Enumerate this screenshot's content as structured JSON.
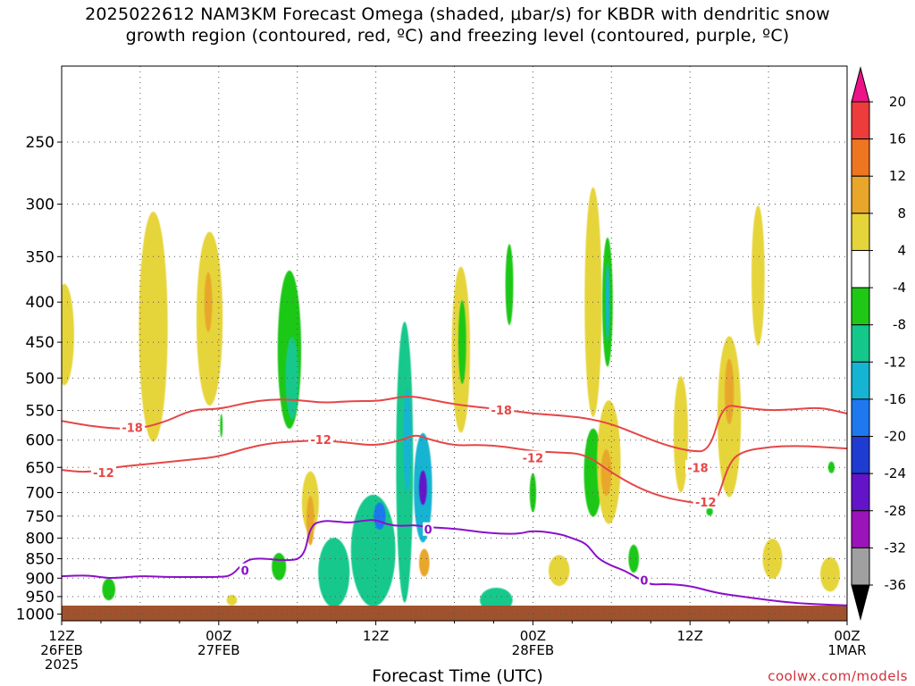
{
  "title": {
    "line1": "2025022612 NAM3KM Forecast Omega (shaded, μbar/s) for KBDR with dendritic snow",
    "line2": "growth region (contoured, red, ºC) and freezing level (contoured, purple, ºC)"
  },
  "xaxis_label": "Forecast Time (UTC)",
  "credit": "coolwx.com/models",
  "chart_data": {
    "type": "heatmap",
    "title": "2025022612 NAM3KM Forecast Omega (shaded, μbar/s) for KBDR with dendritic snow growth region (contoured, red, ºC) and freezing level (contoured, purple, ºC)",
    "xlabel": "Forecast Time (UTC)",
    "ylabel": "",
    "x_unit": "forecast hour",
    "xlim": [
      0,
      60
    ],
    "ylim": [
      1020,
      200
    ],
    "y_ticks": [
      250,
      300,
      350,
      400,
      450,
      500,
      550,
      600,
      650,
      700,
      750,
      800,
      850,
      900,
      950,
      1000
    ],
    "x_ticks": [
      {
        "x": 0,
        "lines": [
          "12Z",
          "26FEB",
          "2025"
        ]
      },
      {
        "x": 12,
        "lines": [
          "00Z",
          "27FEB"
        ]
      },
      {
        "x": 24,
        "lines": [
          "12Z"
        ]
      },
      {
        "x": 36,
        "lines": [
          "00Z",
          "28FEB"
        ]
      },
      {
        "x": 48,
        "lines": [
          "12Z"
        ]
      },
      {
        "x": 60,
        "lines": [
          "00Z",
          "1MAR"
        ]
      }
    ],
    "grid": true,
    "colorbar": {
      "labels": [
        "20",
        "16",
        "12",
        "8",
        "4",
        "-4",
        "-8",
        "-12",
        "-16",
        "-20",
        "-24",
        "-28",
        "-32",
        "-36"
      ],
      "colors": [
        "#ee1289",
        "#ee3b3b",
        "#ee7621",
        "#e8a72b",
        "#e6d43b",
        "#ffffff",
        "#1ec814",
        "#14c88c",
        "#14b4d2",
        "#1e78f0",
        "#1e3cd2",
        "#6414c8",
        "#9b14b9",
        "#a0a0a0",
        "#000000"
      ]
    },
    "omega_regions": [
      {
        "x": 0.2,
        "p": 440,
        "w": 1.5,
        "h": 130,
        "v": 5
      },
      {
        "x": 7.0,
        "p": 430,
        "w": 2.2,
        "h": 280,
        "v": 6
      },
      {
        "x": 11.3,
        "p": 420,
        "w": 2.0,
        "h": 210,
        "v": 6
      },
      {
        "x": 11.2,
        "p": 400,
        "w": 0.6,
        "h": 70,
        "v": 9
      },
      {
        "x": 17.4,
        "p": 460,
        "w": 1.8,
        "h": 210,
        "v": -6
      },
      {
        "x": 17.6,
        "p": 500,
        "w": 1.0,
        "h": 120,
        "v": -9
      },
      {
        "x": 19.0,
        "p": 720,
        "w": 1.3,
        "h": 130,
        "v": 5
      },
      {
        "x": 19.0,
        "p": 760,
        "w": 0.6,
        "h": 110,
        "v": 9
      },
      {
        "x": 20.8,
        "p": 885,
        "w": 2.4,
        "h": 180,
        "v": -8
      },
      {
        "x": 23.8,
        "p": 830,
        "w": 3.4,
        "h": 270,
        "v": -10
      },
      {
        "x": 24.3,
        "p": 750,
        "w": 0.9,
        "h": 60,
        "v": -18
      },
      {
        "x": 26.2,
        "p": 640,
        "w": 1.3,
        "h": 500,
        "v": -8
      },
      {
        "x": 26.4,
        "p": 600,
        "w": 0.6,
        "h": 180,
        "v": -13
      },
      {
        "x": 27.6,
        "p": 690,
        "w": 1.4,
        "h": 220,
        "v": -13
      },
      {
        "x": 27.6,
        "p": 690,
        "w": 0.6,
        "h": 70,
        "v": -24
      },
      {
        "x": 27.7,
        "p": 860,
        "w": 0.8,
        "h": 70,
        "v": 10
      },
      {
        "x": 30.5,
        "p": 460,
        "w": 1.4,
        "h": 220,
        "v": 5
      },
      {
        "x": 30.6,
        "p": 450,
        "w": 0.6,
        "h": 110,
        "v": -6
      },
      {
        "x": 33.2,
        "p": 960,
        "w": 2.5,
        "h": 70,
        "v": -8
      },
      {
        "x": 34.2,
        "p": 380,
        "w": 0.6,
        "h": 90,
        "v": -6
      },
      {
        "x": 36.0,
        "p": 700,
        "w": 0.5,
        "h": 80,
        "v": -6
      },
      {
        "x": 40.6,
        "p": 400,
        "w": 1.3,
        "h": 260,
        "v": 5
      },
      {
        "x": 41.7,
        "p": 400,
        "w": 0.8,
        "h": 150,
        "v": -7
      },
      {
        "x": 41.7,
        "p": 400,
        "w": 0.3,
        "h": 90,
        "v": -12
      },
      {
        "x": 40.6,
        "p": 660,
        "w": 1.4,
        "h": 170,
        "v": -7
      },
      {
        "x": 41.8,
        "p": 640,
        "w": 1.8,
        "h": 230,
        "v": 6
      },
      {
        "x": 41.6,
        "p": 660,
        "w": 0.8,
        "h": 90,
        "v": 10
      },
      {
        "x": 38.0,
        "p": 880,
        "w": 1.6,
        "h": 80,
        "v": 5
      },
      {
        "x": 43.7,
        "p": 850,
        "w": 0.8,
        "h": 70,
        "v": -6
      },
      {
        "x": 47.3,
        "p": 590,
        "w": 1.1,
        "h": 200,
        "v": 5
      },
      {
        "x": 51.0,
        "p": 560,
        "w": 1.8,
        "h": 260,
        "v": 5
      },
      {
        "x": 51.0,
        "p": 520,
        "w": 0.7,
        "h": 100,
        "v": 9
      },
      {
        "x": 53.2,
        "p": 370,
        "w": 1.0,
        "h": 150,
        "v": 5
      },
      {
        "x": 54.3,
        "p": 850,
        "w": 1.5,
        "h": 100,
        "v": 5
      },
      {
        "x": 58.7,
        "p": 890,
        "w": 1.5,
        "h": 90,
        "v": 5
      },
      {
        "x": 58.8,
        "p": 650,
        "w": 0.5,
        "h": 22,
        "v": -6
      },
      {
        "x": 49.5,
        "p": 740,
        "w": 0.5,
        "h": 18,
        "v": -6
      },
      {
        "x": 3.6,
        "p": 930,
        "w": 1.0,
        "h": 60,
        "v": -7
      },
      {
        "x": 13.0,
        "p": 960,
        "w": 0.8,
        "h": 30,
        "v": 5
      },
      {
        "x": 16.6,
        "p": 870,
        "w": 1.1,
        "h": 70,
        "v": -6
      },
      {
        "x": 12.2,
        "p": 575,
        "w": 0.2,
        "h": 40,
        "v": -6
      }
    ],
    "isotherms": [
      {
        "name": "-18",
        "color": "#e64646",
        "label_positions": [
          [
            5.4,
            578
          ],
          [
            33.6,
            549
          ],
          [
            48.6,
            650
          ]
        ],
        "x": [
          0,
          2,
          4,
          6,
          8,
          10,
          12,
          14,
          16,
          18,
          20,
          22,
          24,
          25,
          26,
          27,
          28,
          30,
          32,
          34,
          36,
          38,
          40,
          42,
          44,
          46,
          48,
          49.5,
          50.5,
          52,
          54,
          56,
          58,
          60
        ],
        "p": [
          567,
          575,
          580,
          580,
          568,
          548,
          548,
          538,
          532,
          533,
          538,
          535,
          535,
          532,
          528,
          528,
          532,
          540,
          545,
          549,
          555,
          558,
          562,
          572,
          590,
          608,
          620,
          620,
          540,
          545,
          550,
          548,
          545,
          555
        ]
      },
      {
        "name": "-12",
        "color": "#e64646",
        "label_positions": [
          [
            3.2,
            660
          ],
          [
            19.8,
            599
          ],
          [
            36.0,
            632
          ],
          [
            49.2,
            720
          ]
        ],
        "x": [
          0,
          2,
          4,
          6,
          8,
          10,
          12,
          14,
          16,
          18,
          20,
          22,
          24,
          26,
          27,
          28,
          30,
          32,
          34,
          36,
          38,
          40,
          42,
          44,
          46,
          48,
          49.5,
          50,
          51,
          52,
          54,
          56,
          58,
          60
        ],
        "p": [
          655,
          660,
          650,
          645,
          640,
          635,
          630,
          615,
          605,
          602,
          600,
          605,
          610,
          600,
          590,
          598,
          610,
          608,
          612,
          620,
          622,
          625,
          660,
          690,
          710,
          720,
          725,
          722,
          640,
          620,
          612,
          610,
          612,
          615
        ]
      },
      {
        "name": "0",
        "color": "#8b10c8",
        "label_positions": [
          [
            14.0,
            880
          ],
          [
            28.0,
            780
          ],
          [
            44.5,
            905
          ]
        ],
        "x": [
          0,
          2,
          3,
          4,
          6,
          8,
          10,
          12,
          13,
          14,
          15,
          17,
          18.5,
          19,
          20,
          21,
          22,
          23,
          24,
          25,
          26,
          27,
          28,
          30,
          32,
          33.5,
          35,
          36,
          38,
          39,
          40,
          40.5,
          41,
          42,
          43,
          44,
          45,
          46,
          48,
          50,
          52,
          54,
          56,
          58,
          60
        ],
        "p": [
          895,
          892,
          898,
          900,
          894,
          897,
          897,
          897,
          894,
          855,
          848,
          855,
          850,
          770,
          760,
          762,
          765,
          760,
          758,
          770,
          772,
          770,
          775,
          778,
          786,
          790,
          790,
          782,
          790,
          800,
          812,
          830,
          850,
          868,
          880,
          900,
          918,
          915,
          920,
          940,
          950,
          960,
          968,
          972,
          975
        ]
      }
    ]
  }
}
